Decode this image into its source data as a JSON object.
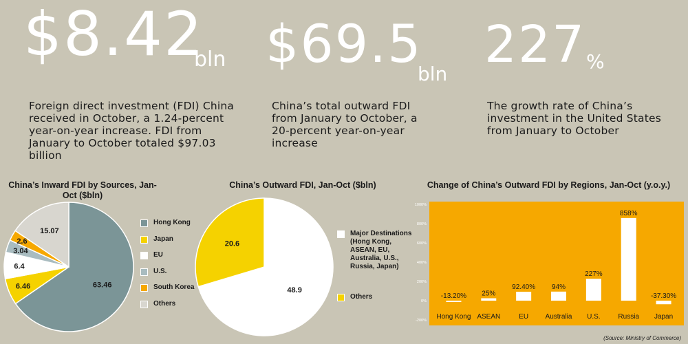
{
  "stats": [
    {
      "value": "$8.42",
      "unit": "bln",
      "text": "Foreign direct investment (FDI) China received in October, a 1.24-percent year-on-year increase. FDI from January to October totaled $97.03 billion"
    },
    {
      "value": "$69.5",
      "unit": "bln",
      "text": "China’s total outward FDI from January to October, a 20-percent year-on-year increase"
    },
    {
      "value": "227",
      "unit": "%",
      "text": "The growth rate of China’s investment in the United States from January to October"
    }
  ],
  "source": "(Source: Ministry of Commerce)",
  "colors": {
    "background": "#c9c5b5",
    "hong_kong": "#7b9597",
    "japan": "#f5d200",
    "eu": "#ffffff",
    "us": "#a9bcc0",
    "south_korea": "#f6a800",
    "others": "#d8d6cf",
    "bar_panel": "#f6a800",
    "bar": "#ffffff"
  },
  "chart_data": [
    {
      "type": "pie",
      "title": "China’s Inward FDI by Sources, Jan-Oct ($bln)",
      "categories": [
        "Hong Kong",
        "Japan",
        "EU",
        "U.S.",
        "South Korea",
        "Others"
      ],
      "values": [
        63.46,
        6.46,
        6.4,
        3.04,
        2.6,
        15.07
      ],
      "value_labels": [
        "63.46",
        "6.46",
        "6.4",
        "3.04",
        "2.6",
        "15.07"
      ],
      "legend": "right"
    },
    {
      "type": "pie",
      "title": "China’s Outward FDI, Jan-Oct ($bln)",
      "categories": [
        "Major Destinations (Hong Kong, ASEAN, EU, Australia, U.S., Russia, Japan)",
        "Others"
      ],
      "legend_lines": [
        [
          "Major Destinations",
          "(Hong Kong,",
          "ASEAN,  EU,",
          "Australia, U.S.,",
          "Russia, Japan)"
        ],
        [
          "Others"
        ]
      ],
      "values": [
        48.9,
        20.6
      ],
      "value_labels": [
        "48.9",
        "20.6"
      ],
      "legend": "right"
    },
    {
      "type": "bar",
      "title": "Change of China’s Outward FDI by Regions, Jan-Oct (y.o.y.)",
      "categories": [
        "Hong Kong",
        "ASEAN",
        "EU",
        "Australia",
        "U.S.",
        "Russia",
        "Japan"
      ],
      "values": [
        -13.2,
        25,
        92.4,
        94,
        227,
        858,
        -37.3
      ],
      "value_labels": [
        "-13.20%",
        "25%",
        "92.40%",
        "94%",
        "227%",
        "858%",
        "-37.30%"
      ],
      "ylim": [
        -200,
        1000
      ],
      "yticks": [
        -200,
        0,
        200,
        400,
        600,
        800,
        1000
      ],
      "ytick_labels": [
        "-200%",
        "0%",
        "200%",
        "400%",
        "600%",
        "800%",
        "1000%"
      ],
      "grid": false
    }
  ]
}
